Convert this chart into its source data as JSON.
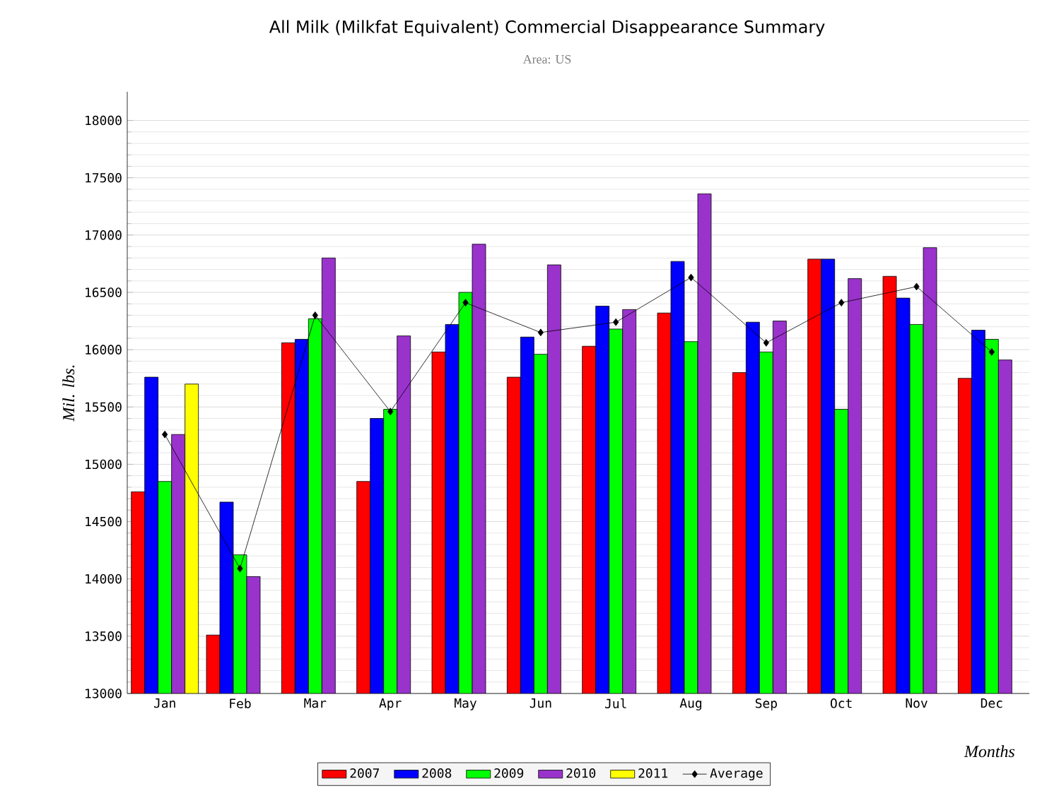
{
  "chart_data": {
    "type": "bar",
    "title": "All Milk (Milkfat Equivalent) Commercial Disappearance Summary",
    "subtitle": "Area: US",
    "xlabel": "Months",
    "ylabel": "Mil. lbs.",
    "categories": [
      "Jan",
      "Feb",
      "Mar",
      "Apr",
      "May",
      "Jun",
      "Jul",
      "Aug",
      "Sep",
      "Oct",
      "Nov",
      "Dec"
    ],
    "series": [
      {
        "name": "2007",
        "color": "#ff0000",
        "values": [
          14760,
          13510,
          16060,
          14850,
          15980,
          15760,
          16030,
          16320,
          15800,
          16790,
          16640,
          15750
        ]
      },
      {
        "name": "2008",
        "color": "#0000ff",
        "values": [
          15760,
          14670,
          16090,
          15400,
          16220,
          16110,
          16380,
          16770,
          16240,
          16790,
          16450,
          16170
        ]
      },
      {
        "name": "2009",
        "color": "#00ff00",
        "values": [
          14850,
          14210,
          16270,
          15480,
          16500,
          15960,
          16180,
          16070,
          15980,
          15480,
          16220,
          16090
        ]
      },
      {
        "name": "2010",
        "color": "#9933cc",
        "values": [
          15260,
          14020,
          16800,
          16120,
          16920,
          16740,
          16350,
          17360,
          16250,
          16620,
          16890,
          15910
        ]
      },
      {
        "name": "2011",
        "color": "#ffff00",
        "values": [
          15700,
          null,
          null,
          null,
          null,
          null,
          null,
          null,
          null,
          null,
          null,
          null
        ]
      },
      {
        "name": "Average",
        "type": "line",
        "marker": "diamond",
        "color": "#000000",
        "values": [
          15260,
          14090,
          16300,
          15460,
          16410,
          16150,
          16240,
          16630,
          16060,
          16410,
          16550,
          15980
        ]
      }
    ],
    "ylim": [
      13000,
      18250
    ],
    "yticks": [
      13000,
      13500,
      14000,
      14500,
      15000,
      15500,
      16000,
      16500,
      17000,
      17500,
      18000
    ],
    "grid": "y",
    "legend": "bottom"
  }
}
